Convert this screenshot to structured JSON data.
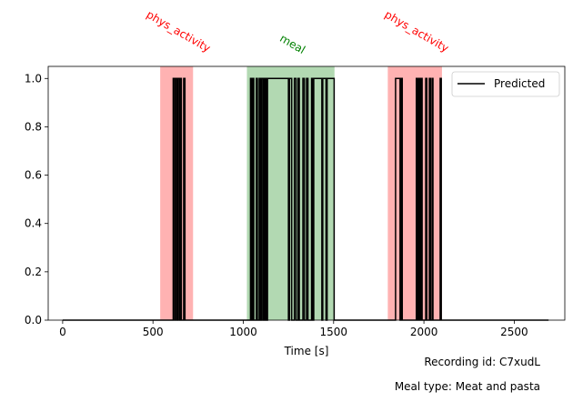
{
  "chart_data": {
    "type": "line",
    "xlabel": "Time [s]",
    "ylabel": "",
    "xlim": [
      -80,
      2780
    ],
    "ylim": [
      0,
      1.05
    ],
    "xticks": [
      0,
      500,
      1000,
      1500,
      2000,
      2500
    ],
    "yticks": [
      0.0,
      0.2,
      0.4,
      0.6,
      0.8,
      1.0
    ],
    "legend": {
      "position": "top-right",
      "entries": [
        "Predicted"
      ]
    },
    "regions": [
      {
        "label": "phys_activity",
        "start": 540,
        "end": 722,
        "color": "#ff0000"
      },
      {
        "label": "meal",
        "start": 1020,
        "end": 1505,
        "color": "#008000"
      },
      {
        "label": "phys_activity",
        "start": 1800,
        "end": 2100,
        "color": "#ff0000"
      }
    ],
    "series": [
      {
        "name": "Predicted",
        "color": "#000000",
        "points": [
          [
            0,
            0
          ],
          [
            612,
            0
          ],
          [
            612,
            1
          ],
          [
            620,
            1
          ],
          [
            620,
            0
          ],
          [
            624,
            0
          ],
          [
            624,
            1
          ],
          [
            632,
            1
          ],
          [
            632,
            0
          ],
          [
            637,
            0
          ],
          [
            637,
            1
          ],
          [
            645,
            1
          ],
          [
            645,
            0
          ],
          [
            652,
            0
          ],
          [
            652,
            1
          ],
          [
            657,
            1
          ],
          [
            657,
            0
          ],
          [
            670,
            0
          ],
          [
            670,
            1
          ],
          [
            677,
            1
          ],
          [
            677,
            0
          ],
          [
            1040,
            0
          ],
          [
            1040,
            1
          ],
          [
            1047,
            1
          ],
          [
            1047,
            0
          ],
          [
            1052,
            0
          ],
          [
            1052,
            1
          ],
          [
            1058,
            1
          ],
          [
            1058,
            0
          ],
          [
            1072,
            0
          ],
          [
            1072,
            1
          ],
          [
            1078,
            1
          ],
          [
            1078,
            0
          ],
          [
            1088,
            0
          ],
          [
            1088,
            1
          ],
          [
            1094,
            1
          ],
          [
            1094,
            0
          ],
          [
            1100,
            0
          ],
          [
            1100,
            1
          ],
          [
            1108,
            1
          ],
          [
            1108,
            0
          ],
          [
            1114,
            0
          ],
          [
            1114,
            1
          ],
          [
            1120,
            1
          ],
          [
            1120,
            0
          ],
          [
            1125,
            0
          ],
          [
            1125,
            1
          ],
          [
            1129,
            1
          ],
          [
            1129,
            0
          ],
          [
            1134,
            0
          ],
          [
            1134,
            1
          ],
          [
            1250,
            1
          ],
          [
            1250,
            0
          ],
          [
            1256,
            0
          ],
          [
            1256,
            1
          ],
          [
            1268,
            1
          ],
          [
            1268,
            0
          ],
          [
            1283,
            0
          ],
          [
            1283,
            1
          ],
          [
            1292,
            1
          ],
          [
            1292,
            0
          ],
          [
            1303,
            0
          ],
          [
            1303,
            1
          ],
          [
            1310,
            1
          ],
          [
            1310,
            0
          ],
          [
            1330,
            0
          ],
          [
            1330,
            1
          ],
          [
            1338,
            1
          ],
          [
            1338,
            0
          ],
          [
            1350,
            0
          ],
          [
            1350,
            1
          ],
          [
            1358,
            1
          ],
          [
            1358,
            0
          ],
          [
            1378,
            0
          ],
          [
            1378,
            1
          ],
          [
            1384,
            1
          ],
          [
            1384,
            0
          ],
          [
            1390,
            0
          ],
          [
            1390,
            1
          ],
          [
            1435,
            1
          ],
          [
            1435,
            0
          ],
          [
            1440,
            0
          ],
          [
            1440,
            1
          ],
          [
            1458,
            1
          ],
          [
            1458,
            0
          ],
          [
            1464,
            0
          ],
          [
            1464,
            1
          ],
          [
            1503,
            1
          ],
          [
            1503,
            0
          ],
          [
            1843,
            0
          ],
          [
            1843,
            1
          ],
          [
            1868,
            1
          ],
          [
            1868,
            0
          ],
          [
            1875,
            0
          ],
          [
            1875,
            1
          ],
          [
            1880,
            1
          ],
          [
            1880,
            0
          ],
          [
            1958,
            0
          ],
          [
            1958,
            1
          ],
          [
            1964,
            1
          ],
          [
            1964,
            0
          ],
          [
            1971,
            0
          ],
          [
            1971,
            1
          ],
          [
            1977,
            1
          ],
          [
            1977,
            0
          ],
          [
            1984,
            0
          ],
          [
            1984,
            1
          ],
          [
            1990,
            1
          ],
          [
            1990,
            0
          ],
          [
            2010,
            0
          ],
          [
            2010,
            1
          ],
          [
            2016,
            1
          ],
          [
            2016,
            0
          ],
          [
            2030,
            0
          ],
          [
            2030,
            1
          ],
          [
            2036,
            1
          ],
          [
            2036,
            0
          ],
          [
            2045,
            0
          ],
          [
            2045,
            1
          ],
          [
            2050,
            1
          ],
          [
            2050,
            0
          ],
          [
            2090,
            0
          ],
          [
            2090,
            1
          ],
          [
            2096,
            1
          ],
          [
            2096,
            0
          ],
          [
            2690,
            0
          ]
        ]
      }
    ],
    "annotations": [
      "Recording id: C7xudL",
      "Meal type: Meat and pasta"
    ]
  }
}
